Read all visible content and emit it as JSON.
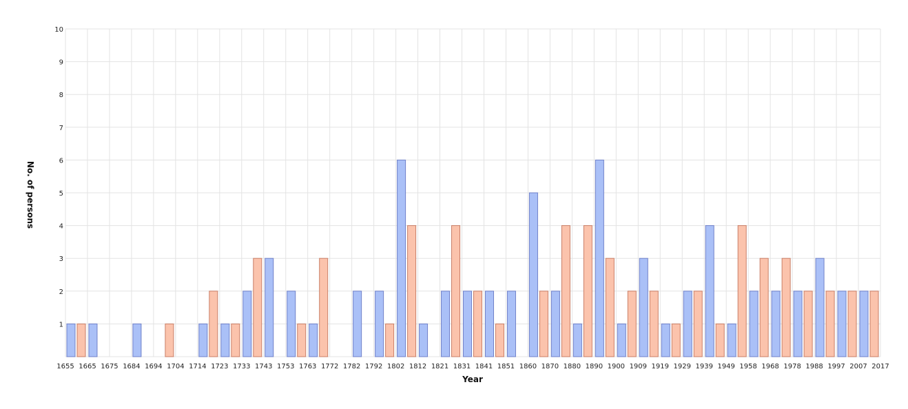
{
  "chart_data": {
    "type": "bar",
    "title": "",
    "xlabel": "Year",
    "ylabel": "No. of persons",
    "ylim": [
      0,
      10
    ],
    "yticks": [
      "1",
      "2",
      "3",
      "4",
      "5",
      "6",
      "7",
      "8",
      "9",
      "10"
    ],
    "grid": true,
    "legend": "none",
    "xticks": [
      "1655",
      "1665",
      "1675",
      "1684",
      "1694",
      "1704",
      "1714",
      "1723",
      "1733",
      "1743",
      "1753",
      "1763",
      "1772",
      "1782",
      "1792",
      "1802",
      "1812",
      "1821",
      "1831",
      "1841",
      "1851",
      "1860",
      "1870",
      "1880",
      "1890",
      "1900",
      "1909",
      "1919",
      "1929",
      "1939",
      "1949",
      "1958",
      "1968",
      "1978",
      "1988",
      "1997",
      "2007",
      "2017"
    ],
    "series": [
      {
        "color": "#aac0f7",
        "border": "#6f80c9",
        "values": [
          1,
          1,
          0,
          1,
          0,
          0,
          1,
          1,
          2,
          3,
          2,
          1,
          0,
          2,
          2,
          6,
          1,
          2,
          2,
          2,
          2,
          5,
          2,
          1,
          6,
          1,
          3,
          1,
          2,
          4,
          1,
          2,
          2,
          2,
          3,
          2,
          2
        ]
      },
      {
        "color": "#fbc3ac",
        "border": "#c97e66",
        "values": [
          1,
          0,
          0,
          0,
          1,
          0,
          2,
          1,
          3,
          0,
          1,
          3,
          0,
          0,
          1,
          4,
          0,
          4,
          2,
          1,
          0,
          2,
          4,
          4,
          3,
          2,
          2,
          1,
          2,
          1,
          4,
          3,
          3,
          2,
          2,
          2,
          2
        ]
      }
    ]
  }
}
